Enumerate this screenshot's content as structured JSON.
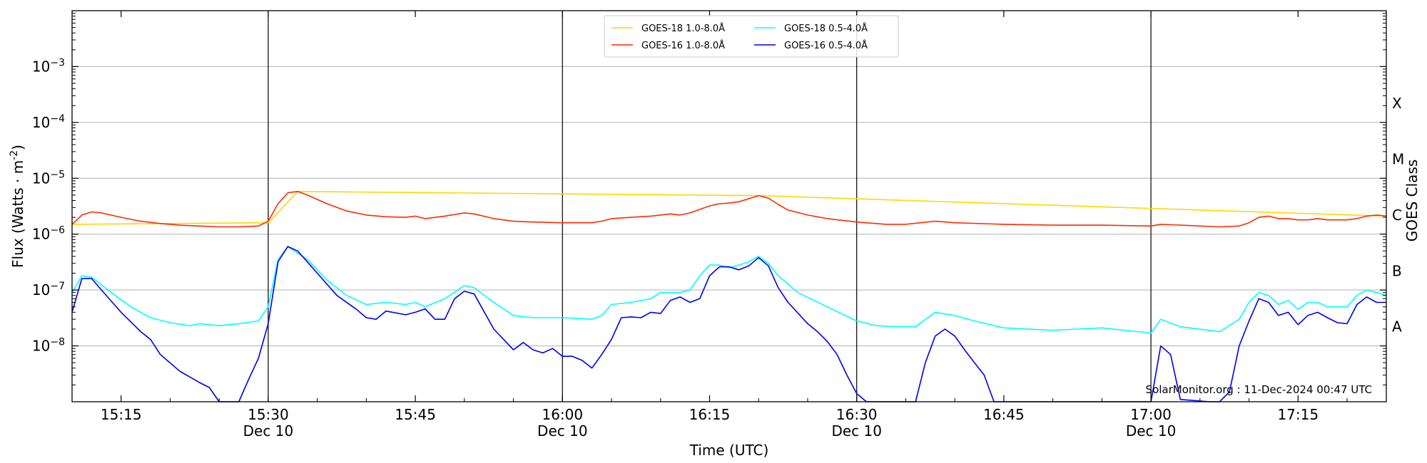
{
  "chart_data": {
    "type": "line",
    "title": "",
    "xlabel": "Time (UTC)",
    "ylabel": "Flux (Watts · m",
    "ylabel_sup": "-2",
    "ylabel_close": ")",
    "y2label": "GOES Class",
    "yscale": "log",
    "ylim": [
      1e-09,
      0.01
    ],
    "xlim": [
      "15:10",
      "17:24"
    ],
    "grid": "horizontal",
    "legend_position": "top-center",
    "y_ticks": [
      {
        "base": "10",
        "exp": "−3",
        "value": 0.001
      },
      {
        "base": "10",
        "exp": "−4",
        "value": 0.0001
      },
      {
        "base": "10",
        "exp": "−5",
        "value": 1e-05
      },
      {
        "base": "10",
        "exp": "−6",
        "value": 1e-06
      },
      {
        "base": "10",
        "exp": "−7",
        "value": 1e-07
      },
      {
        "base": "10",
        "exp": "−8",
        "value": 1e-08
      }
    ],
    "x_ticks": [
      {
        "time": "15:15",
        "label": "15:15",
        "date": ""
      },
      {
        "time": "15:30",
        "label": "15:30",
        "date": "Dec 10"
      },
      {
        "time": "15:45",
        "label": "15:45",
        "date": ""
      },
      {
        "time": "16:00",
        "label": "16:00",
        "date": "Dec 10"
      },
      {
        "time": "16:15",
        "label": "16:15",
        "date": ""
      },
      {
        "time": "16:30",
        "label": "16:30",
        "date": "Dec 10"
      },
      {
        "time": "16:45",
        "label": "16:45",
        "date": ""
      },
      {
        "time": "17:00",
        "label": "17:00",
        "date": "Dec 10"
      },
      {
        "time": "17:15",
        "label": "17:15",
        "date": ""
      }
    ],
    "vertical_lines": [
      "15:30",
      "16:00",
      "16:30",
      "17:00"
    ],
    "class_labels": [
      {
        "label": "X",
        "flux": 0.00022
      },
      {
        "label": "M",
        "flux": 2.2e-05
      },
      {
        "label": "C",
        "flux": 2.2e-06
      },
      {
        "label": "B",
        "flux": 2.2e-07
      },
      {
        "label": "A",
        "flux": 2.2e-08
      }
    ],
    "annotation": "SolarMonitor.org : 11-Dec-2024 00:47 UTC",
    "series": [
      {
        "name": "GOES-18 1.0-8.0Å",
        "color": "#ffd700",
        "x": [
          "15:10",
          "15:30",
          "15:33",
          "16:20",
          "17:24"
        ],
        "values": [
          1.5e-06,
          1.6e-06,
          5.8e-06,
          4.9e-06,
          2.1e-06
        ]
      },
      {
        "name": "GOES-16 1.0-8.0Å",
        "color": "#ff2a00",
        "x": [
          "15:10",
          "15:11",
          "15:12",
          "15:13",
          "15:15",
          "15:17",
          "15:19",
          "15:21",
          "15:23",
          "15:25",
          "15:27",
          "15:29",
          "15:30",
          "15:31",
          "15:32",
          "15:33",
          "15:34",
          "15:36",
          "15:38",
          "15:40",
          "15:42",
          "15:44",
          "15:45",
          "15:46",
          "15:48",
          "15:50",
          "15:51",
          "15:53",
          "15:55",
          "15:57",
          "16:00",
          "16:03",
          "16:04",
          "16:05",
          "16:07",
          "16:09",
          "16:11",
          "16:12",
          "16:13",
          "16:15",
          "16:16",
          "16:17",
          "16:18",
          "16:19",
          "16:20",
          "16:21",
          "16:22",
          "16:23",
          "16:25",
          "16:27",
          "16:30",
          "16:33",
          "16:35",
          "16:38",
          "16:40",
          "16:45",
          "16:50",
          "16:55",
          "17:00",
          "17:01",
          "17:03",
          "17:07",
          "17:09",
          "17:10",
          "17:11",
          "17:12",
          "17:13",
          "17:14",
          "17:15",
          "17:16",
          "17:17",
          "17:18",
          "17:20",
          "17:21",
          "17:22",
          "17:23",
          "17:24"
        ],
        "values": [
          1.5e-06,
          2.2e-06,
          2.5e-06,
          2.4e-06,
          2e-06,
          1.7e-06,
          1.55e-06,
          1.45e-06,
          1.4e-06,
          1.35e-06,
          1.35e-06,
          1.4e-06,
          1.7e-06,
          3.5e-06,
          5.5e-06,
          5.8e-06,
          5e-06,
          3.5e-06,
          2.6e-06,
          2.2e-06,
          2.05e-06,
          2e-06,
          2.1e-06,
          1.9e-06,
          2.1e-06,
          2.4e-06,
          2.3e-06,
          1.9e-06,
          1.7e-06,
          1.65e-06,
          1.6e-06,
          1.6e-06,
          1.7e-06,
          1.9e-06,
          2e-06,
          2.1e-06,
          2.3e-06,
          2.2e-06,
          2.4e-06,
          3.2e-06,
          3.5e-06,
          3.6e-06,
          3.8e-06,
          4.3e-06,
          4.9e-06,
          4.4e-06,
          3.4e-06,
          2.7e-06,
          2.2e-06,
          1.9e-06,
          1.65e-06,
          1.5e-06,
          1.5e-06,
          1.7e-06,
          1.6e-06,
          1.5e-06,
          1.45e-06,
          1.45e-06,
          1.4e-06,
          1.5e-06,
          1.45e-06,
          1.35e-06,
          1.4e-06,
          1.6e-06,
          2e-06,
          2.1e-06,
          1.9e-06,
          1.9e-06,
          1.8e-06,
          1.8e-06,
          1.9e-06,
          1.8e-06,
          1.8e-06,
          1.9e-06,
          2.1e-06,
          2.2e-06,
          2.1e-06
        ]
      },
      {
        "name": "GOES-18 0.5-4.0Å",
        "color": "#00ffff",
        "x": [
          "15:10",
          "15:11",
          "15:12",
          "15:14",
          "15:16",
          "15:18",
          "15:20",
          "15:22",
          "15:23",
          "15:25",
          "15:27",
          "15:29",
          "15:30",
          "15:31",
          "15:32",
          "15:34",
          "15:36",
          "15:38",
          "15:40",
          "15:42",
          "15:44",
          "15:45",
          "15:46",
          "15:48",
          "15:50",
          "15:51",
          "15:53",
          "15:55",
          "15:57",
          "16:00",
          "16:03",
          "16:04",
          "16:05",
          "16:07",
          "16:09",
          "16:10",
          "16:12",
          "16:13",
          "16:14",
          "16:15",
          "16:16",
          "16:17",
          "16:18",
          "16:19",
          "16:20",
          "16:21",
          "16:22",
          "16:24",
          "16:27",
          "16:30",
          "16:32",
          "16:34",
          "16:36",
          "16:38",
          "16:40",
          "16:42",
          "16:45",
          "16:50",
          "16:55",
          "17:00",
          "17:01",
          "17:03",
          "17:07",
          "17:09",
          "17:10",
          "17:11",
          "17:12",
          "17:13",
          "17:14",
          "17:15",
          "17:16",
          "17:17",
          "17:18",
          "17:20",
          "17:21",
          "17:22",
          "17:23",
          "17:24"
        ],
        "values": [
          9e-08,
          1.8e-07,
          1.7e-07,
          9e-08,
          5e-08,
          3.2e-08,
          2.6e-08,
          2.3e-08,
          2.5e-08,
          2.3e-08,
          2.5e-08,
          2.8e-08,
          5e-08,
          3.5e-07,
          6e-07,
          3.5e-07,
          1.5e-07,
          8e-08,
          5.5e-08,
          6e-08,
          5.5e-08,
          6e-08,
          5e-08,
          7e-08,
          1.2e-07,
          1.1e-07,
          6e-08,
          3.5e-08,
          3.2e-08,
          3.2e-08,
          3e-08,
          3.5e-08,
          5.5e-08,
          6e-08,
          7e-08,
          9e-08,
          9e-08,
          1e-07,
          1.8e-07,
          2.8e-07,
          2.8e-07,
          2.5e-07,
          2.8e-07,
          3.2e-07,
          4e-07,
          3e-07,
          1.8e-07,
          9e-08,
          5e-08,
          2.8e-08,
          2.3e-08,
          2.2e-08,
          2.2e-08,
          4e-08,
          3.5e-08,
          2.8e-08,
          2.1e-08,
          1.9e-08,
          2.1e-08,
          1.7e-08,
          3e-08,
          2.2e-08,
          1.8e-08,
          3e-08,
          6e-08,
          9e-08,
          8e-08,
          5.5e-08,
          6.5e-08,
          4.5e-08,
          6e-08,
          6e-08,
          5e-08,
          5e-08,
          8e-08,
          1e-07,
          9e-08,
          8e-08
        ]
      },
      {
        "name": "GOES-16 0.5-4.0Å",
        "color": "#0000ee",
        "x": [
          "15:10",
          "15:11",
          "15:12",
          "15:13",
          "15:15",
          "15:17",
          "15:18",
          "15:19",
          "15:21",
          "15:23",
          "15:24",
          "15:25",
          "15:27",
          "15:28",
          "15:29",
          "15:30",
          "15:31",
          "15:32",
          "15:33",
          "15:35",
          "15:37",
          "15:39",
          "15:40",
          "15:41",
          "15:42",
          "15:44",
          "15:45",
          "15:46",
          "15:47",
          "15:48",
          "15:49",
          "15:50",
          "15:51",
          "15:53",
          "15:55",
          "15:56",
          "15:57",
          "15:58",
          "15:59",
          "16:00",
          "16:01",
          "16:02",
          "16:03",
          "16:04",
          "16:05",
          "16:06",
          "16:07",
          "16:08",
          "16:09",
          "16:10",
          "16:11",
          "16:12",
          "16:13",
          "16:14",
          "16:15",
          "16:16",
          "16:17",
          "16:18",
          "16:19",
          "16:20",
          "16:21",
          "16:22",
          "16:23",
          "16:25",
          "16:26",
          "16:27",
          "16:28",
          "16:29",
          "16:30",
          "16:31",
          "16:36",
          "16:37",
          "16:38",
          "16:39",
          "16:40",
          "16:41",
          "16:42",
          "16:43",
          "16:44",
          "16:58",
          "16:59",
          "17:00",
          "17:01",
          "17:02",
          "17:03",
          "17:06",
          "17:07",
          "17:08",
          "17:09",
          "17:10",
          "17:11",
          "17:12",
          "17:13",
          "17:14",
          "17:15",
          "17:16",
          "17:17",
          "17:18",
          "17:19",
          "17:20",
          "17:21",
          "17:22",
          "17:23",
          "17:24"
        ],
        "values": [
          4e-08,
          1.6e-07,
          1.6e-07,
          1e-07,
          4e-08,
          1.8e-08,
          1.3e-08,
          7e-09,
          3.5e-09,
          2.2e-09,
          1.8e-09,
          1e-09,
          1e-09,
          2.5e-09,
          6e-09,
          2.5e-08,
          3.2e-07,
          6e-07,
          5e-07,
          2e-07,
          8e-08,
          4.5e-08,
          3.2e-08,
          3e-08,
          4.2e-08,
          3.6e-08,
          4e-08,
          4.6e-08,
          3e-08,
          3e-08,
          7e-08,
          9.5e-08,
          8.5e-08,
          2e-08,
          8.5e-09,
          1.15e-08,
          8.5e-09,
          7.5e-09,
          9e-09,
          6.5e-09,
          6.5e-09,
          5.5e-09,
          4e-09,
          7e-09,
          1.3e-08,
          3.2e-08,
          3.3e-08,
          3.2e-08,
          4e-08,
          3.8e-08,
          6.5e-08,
          7.5e-08,
          6e-08,
          7e-08,
          1.8e-07,
          2.6e-07,
          2.6e-07,
          2.3e-07,
          2.7e-07,
          3.8e-07,
          2.7e-07,
          1.1e-07,
          6e-08,
          2.5e-08,
          1.8e-08,
          1.2e-08,
          7e-09,
          3e-09,
          1.4e-09,
          1e-09,
          1e-09,
          5e-09,
          1.5e-08,
          2e-08,
          1.5e-08,
          8.5e-09,
          5e-09,
          3e-09,
          1e-09,
          1e-09,
          1e-09,
          1e-09,
          1e-08,
          7e-09,
          1.1e-09,
          1e-09,
          1e-09,
          1.5e-09,
          1e-08,
          2.8e-08,
          7e-08,
          6e-08,
          3.5e-08,
          4e-08,
          2.4e-08,
          3.5e-08,
          4e-08,
          3.2e-08,
          2.6e-08,
          2.5e-08,
          5.5e-08,
          7.5e-08,
          6e-08,
          6e-08
        ]
      }
    ]
  }
}
